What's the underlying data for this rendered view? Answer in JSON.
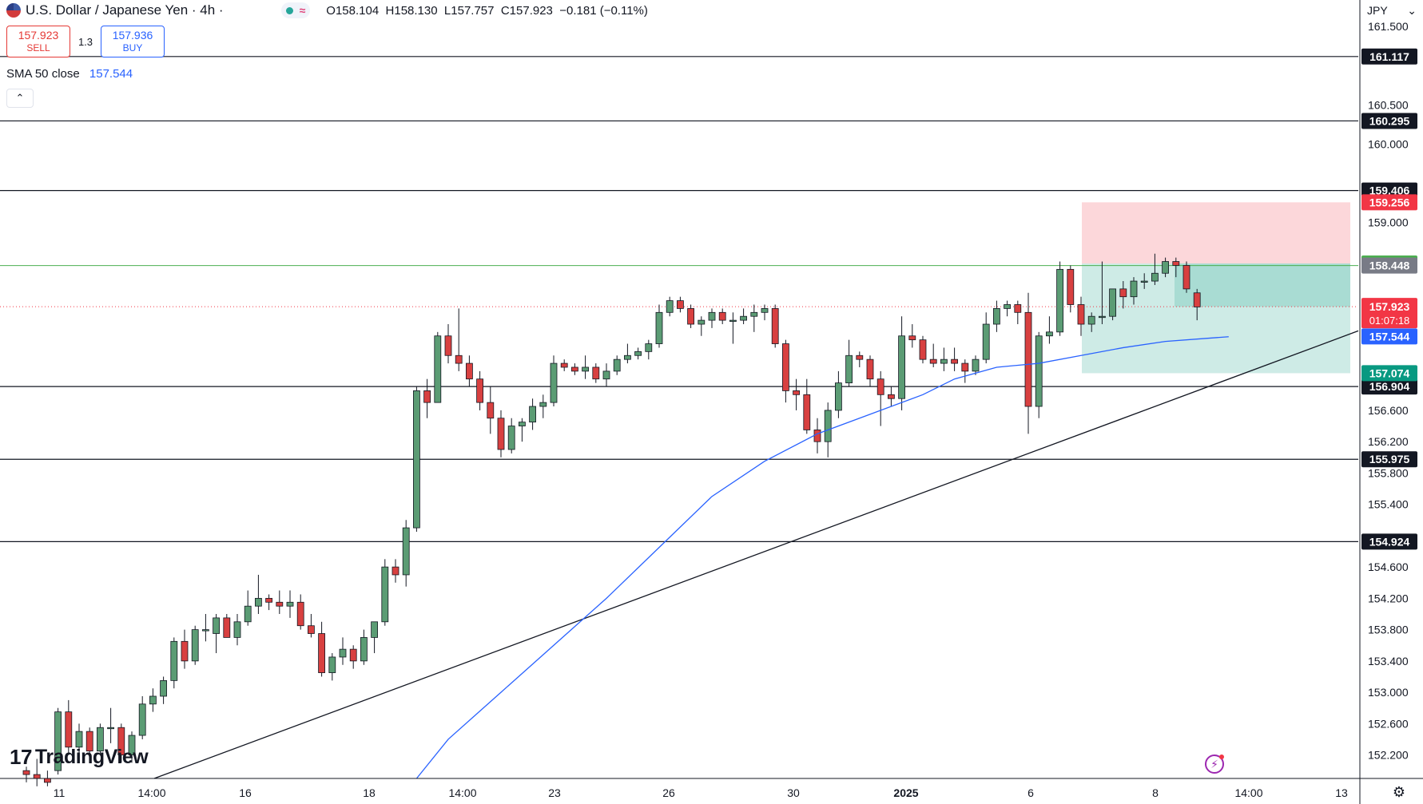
{
  "header": {
    "symbol_title": "U.S. Dollar / Japanese Yen · 4h ·",
    "ohlc": {
      "open": "O158.104",
      "high": "H158.130",
      "low": "L157.757",
      "close": "C157.923",
      "change": "−0.181 (−0.11%)"
    }
  },
  "trade": {
    "sell_price": "157.923",
    "sell_label": "SELL",
    "spread": "1.3",
    "buy_price": "157.936",
    "buy_label": "BUY"
  },
  "indicator": {
    "label": "SMA 50 close",
    "value": "157.544"
  },
  "currency": "JPY",
  "logo_text": "TradingView",
  "icons": {
    "flag": "us-jp-flag-icon",
    "collapse": "chevron-up-icon",
    "market": "market-open-dot-icon",
    "bolt": "lightning-icon",
    "settings": "gear-icon",
    "dropdown": "chevron-down-icon"
  },
  "colors": {
    "up": "#26a69a",
    "up_body": "#5b9c74",
    "down": "#d84040",
    "sma": "#2962ff",
    "stop_zone": "rgba(242,54,69,0.2)",
    "target_zone": "rgba(8,153,129,0.2)",
    "current_price": "#f23645",
    "sma_label": "#2962ff",
    "green_label": "#4caf50"
  },
  "chart_data": {
    "type": "candlestick",
    "title": "U.S. Dollar / Japanese Yen · 4h",
    "x_axis_labels": [
      "11",
      "14:00",
      "16",
      "18",
      "14:00",
      "23",
      "26",
      "30",
      "2025",
      "6",
      "8",
      "14:00",
      "13"
    ],
    "y_axis_ticks": [
      "161.500",
      "160.500",
      "160.000",
      "159.000",
      "156.600",
      "156.200",
      "155.800",
      "155.400",
      "154.600",
      "154.200",
      "153.800",
      "153.400",
      "153.000",
      "152.600",
      "152.200"
    ],
    "ylim": [
      151.9,
      161.9
    ],
    "horizontal_levels": [
      "161.117",
      "160.295",
      "159.406",
      "156.904",
      "155.975",
      "154.924"
    ],
    "position": {
      "stop": "159.256",
      "entry": "158.475",
      "target": "157.074",
      "entry_line": "158.448"
    },
    "current_price": "157.923",
    "countdown": "01:07:18",
    "sma_label": "157.544",
    "trendline": {
      "from": [
        0,
        151.9
      ],
      "to": [
        124,
        157.5
      ]
    },
    "candles": [
      [
        152.0,
        152.05,
        151.85,
        151.95
      ],
      [
        151.95,
        152.15,
        151.8,
        151.9
      ],
      [
        151.9,
        152.0,
        151.8,
        151.85
      ],
      [
        152.0,
        152.8,
        151.95,
        152.75
      ],
      [
        152.75,
        152.9,
        152.2,
        152.3
      ],
      [
        152.3,
        152.6,
        152.15,
        152.5
      ],
      [
        152.5,
        152.55,
        152.2,
        152.25
      ],
      [
        152.25,
        152.6,
        152.2,
        152.55
      ],
      [
        152.55,
        152.8,
        152.35,
        152.55
      ],
      [
        152.55,
        152.6,
        152.1,
        152.2
      ],
      [
        152.2,
        152.5,
        152.1,
        152.45
      ],
      [
        152.45,
        152.95,
        152.4,
        152.85
      ],
      [
        152.85,
        153.05,
        152.75,
        152.95
      ],
      [
        152.95,
        153.2,
        152.85,
        153.15
      ],
      [
        153.15,
        153.7,
        153.05,
        153.65
      ],
      [
        153.65,
        153.8,
        153.3,
        153.4
      ],
      [
        153.4,
        153.85,
        153.35,
        153.8
      ],
      [
        153.8,
        154.0,
        153.65,
        153.8
      ],
      [
        153.75,
        154.0,
        153.5,
        153.95
      ],
      [
        153.95,
        154.0,
        153.7,
        153.7
      ],
      [
        153.7,
        154.0,
        153.6,
        153.9
      ],
      [
        153.9,
        154.3,
        153.85,
        154.1
      ],
      [
        154.1,
        154.5,
        154.0,
        154.2
      ],
      [
        154.2,
        154.25,
        154.05,
        154.15
      ],
      [
        154.15,
        154.3,
        154.0,
        154.1
      ],
      [
        154.1,
        154.3,
        153.95,
        154.15
      ],
      [
        154.15,
        154.25,
        153.8,
        153.85
      ],
      [
        153.85,
        154.0,
        153.7,
        153.75
      ],
      [
        153.75,
        153.9,
        153.2,
        153.25
      ],
      [
        153.25,
        153.5,
        153.15,
        153.45
      ],
      [
        153.45,
        153.7,
        153.35,
        153.55
      ],
      [
        153.55,
        153.6,
        153.3,
        153.4
      ],
      [
        153.4,
        153.8,
        153.35,
        153.7
      ],
      [
        153.7,
        153.9,
        153.5,
        153.9
      ],
      [
        153.9,
        154.7,
        153.85,
        154.6
      ],
      [
        154.6,
        154.7,
        154.4,
        154.5
      ],
      [
        154.5,
        155.2,
        154.35,
        155.1
      ],
      [
        155.1,
        156.9,
        155.05,
        156.85
      ],
      [
        156.85,
        157.0,
        156.5,
        156.7
      ],
      [
        156.7,
        157.6,
        156.75,
        157.55
      ],
      [
        157.55,
        157.7,
        157.2,
        157.3
      ],
      [
        157.3,
        157.9,
        157.1,
        157.2
      ],
      [
        157.2,
        157.3,
        156.9,
        157.0
      ],
      [
        157.0,
        157.1,
        156.6,
        156.7
      ],
      [
        156.7,
        156.9,
        156.3,
        156.5
      ],
      [
        156.5,
        156.6,
        156.0,
        156.1
      ],
      [
        156.1,
        156.5,
        156.05,
        156.4
      ],
      [
        156.4,
        156.5,
        156.2,
        156.45
      ],
      [
        156.45,
        156.75,
        156.35,
        156.65
      ],
      [
        156.65,
        156.8,
        156.5,
        156.7
      ],
      [
        156.7,
        157.3,
        156.65,
        157.2
      ],
      [
        157.2,
        157.25,
        157.1,
        157.15
      ],
      [
        157.15,
        157.2,
        157.05,
        157.1
      ],
      [
        157.1,
        157.3,
        157.0,
        157.15
      ],
      [
        157.15,
        157.2,
        156.95,
        157.0
      ],
      [
        157.0,
        157.2,
        156.9,
        157.1
      ],
      [
        157.1,
        157.3,
        157.05,
        157.25
      ],
      [
        157.25,
        157.45,
        157.2,
        157.3
      ],
      [
        157.3,
        157.4,
        157.25,
        157.35
      ],
      [
        157.35,
        157.5,
        157.25,
        157.45
      ],
      [
        157.45,
        157.95,
        157.4,
        157.85
      ],
      [
        157.85,
        158.05,
        157.8,
        158.0
      ],
      [
        158.0,
        158.05,
        157.85,
        157.9
      ],
      [
        157.9,
        157.95,
        157.65,
        157.7
      ],
      [
        157.7,
        157.8,
        157.55,
        157.75
      ],
      [
        157.75,
        157.9,
        157.65,
        157.85
      ],
      [
        157.85,
        157.9,
        157.7,
        157.75
      ],
      [
        157.75,
        157.85,
        157.45,
        157.75
      ],
      [
        157.75,
        157.9,
        157.7,
        157.8
      ],
      [
        157.8,
        157.95,
        157.6,
        157.85
      ],
      [
        157.85,
        157.95,
        157.75,
        157.9
      ],
      [
        157.9,
        157.95,
        157.4,
        157.45
      ],
      [
        157.45,
        157.5,
        156.7,
        156.85
      ],
      [
        156.85,
        157.0,
        156.6,
        156.8
      ],
      [
        156.8,
        157.0,
        156.3,
        156.35
      ],
      [
        156.35,
        156.5,
        156.05,
        156.2
      ],
      [
        156.2,
        156.7,
        156.0,
        156.6
      ],
      [
        156.6,
        157.1,
        156.5,
        156.95
      ],
      [
        156.95,
        157.5,
        156.9,
        157.3
      ],
      [
        157.3,
        157.35,
        157.15,
        157.25
      ],
      [
        157.25,
        157.3,
        156.9,
        157.0
      ],
      [
        157.0,
        157.1,
        156.4,
        156.8
      ],
      [
        156.8,
        156.9,
        156.65,
        156.75
      ],
      [
        156.75,
        157.8,
        156.6,
        157.55
      ],
      [
        157.55,
        157.7,
        157.4,
        157.5
      ],
      [
        157.5,
        157.55,
        157.2,
        157.25
      ],
      [
        157.25,
        157.45,
        157.15,
        157.2
      ],
      [
        157.2,
        157.4,
        157.1,
        157.25
      ],
      [
        157.25,
        157.4,
        157.1,
        157.2
      ],
      [
        157.2,
        157.25,
        156.95,
        157.1
      ],
      [
        157.1,
        157.3,
        157.05,
        157.25
      ],
      [
        157.25,
        157.85,
        157.2,
        157.7
      ],
      [
        157.7,
        158.0,
        157.6,
        157.9
      ],
      [
        157.9,
        158.0,
        157.8,
        157.95
      ],
      [
        157.95,
        158.0,
        157.7,
        157.85
      ],
      [
        157.85,
        158.1,
        156.3,
        156.65
      ],
      [
        156.65,
        157.6,
        156.5,
        157.55
      ],
      [
        157.55,
        157.8,
        157.45,
        157.6
      ],
      [
        157.6,
        158.5,
        157.55,
        158.4
      ],
      [
        158.4,
        158.45,
        157.85,
        157.95
      ],
      [
        157.95,
        158.05,
        157.55,
        157.7
      ],
      [
        157.7,
        157.85,
        157.6,
        157.8
      ],
      [
        157.8,
        158.5,
        157.7,
        157.8
      ],
      [
        157.8,
        158.15,
        157.75,
        158.15
      ],
      [
        158.15,
        158.25,
        157.9,
        158.05
      ],
      [
        158.05,
        158.3,
        157.95,
        158.25
      ],
      [
        158.25,
        158.35,
        158.15,
        158.25
      ],
      [
        158.25,
        158.6,
        158.2,
        158.35
      ],
      [
        158.35,
        158.55,
        158.3,
        158.5
      ],
      [
        158.5,
        158.55,
        158.3,
        158.45
      ],
      [
        158.45,
        158.5,
        158.1,
        158.15
      ],
      [
        158.1,
        158.15,
        157.75,
        157.92
      ]
    ],
    "sma50": [
      [
        37,
        151.9
      ],
      [
        40,
        152.4
      ],
      [
        45,
        153.0
      ],
      [
        50,
        153.6
      ],
      [
        55,
        154.2
      ],
      [
        60,
        154.85
      ],
      [
        65,
        155.5
      ],
      [
        70,
        155.95
      ],
      [
        75,
        156.3
      ],
      [
        80,
        156.55
      ],
      [
        85,
        156.8
      ],
      [
        88,
        157.0
      ],
      [
        92,
        157.15
      ],
      [
        96,
        157.2
      ],
      [
        100,
        157.3
      ],
      [
        104,
        157.4
      ],
      [
        108,
        157.48
      ],
      [
        112,
        157.52
      ],
      [
        114,
        157.54
      ]
    ]
  }
}
